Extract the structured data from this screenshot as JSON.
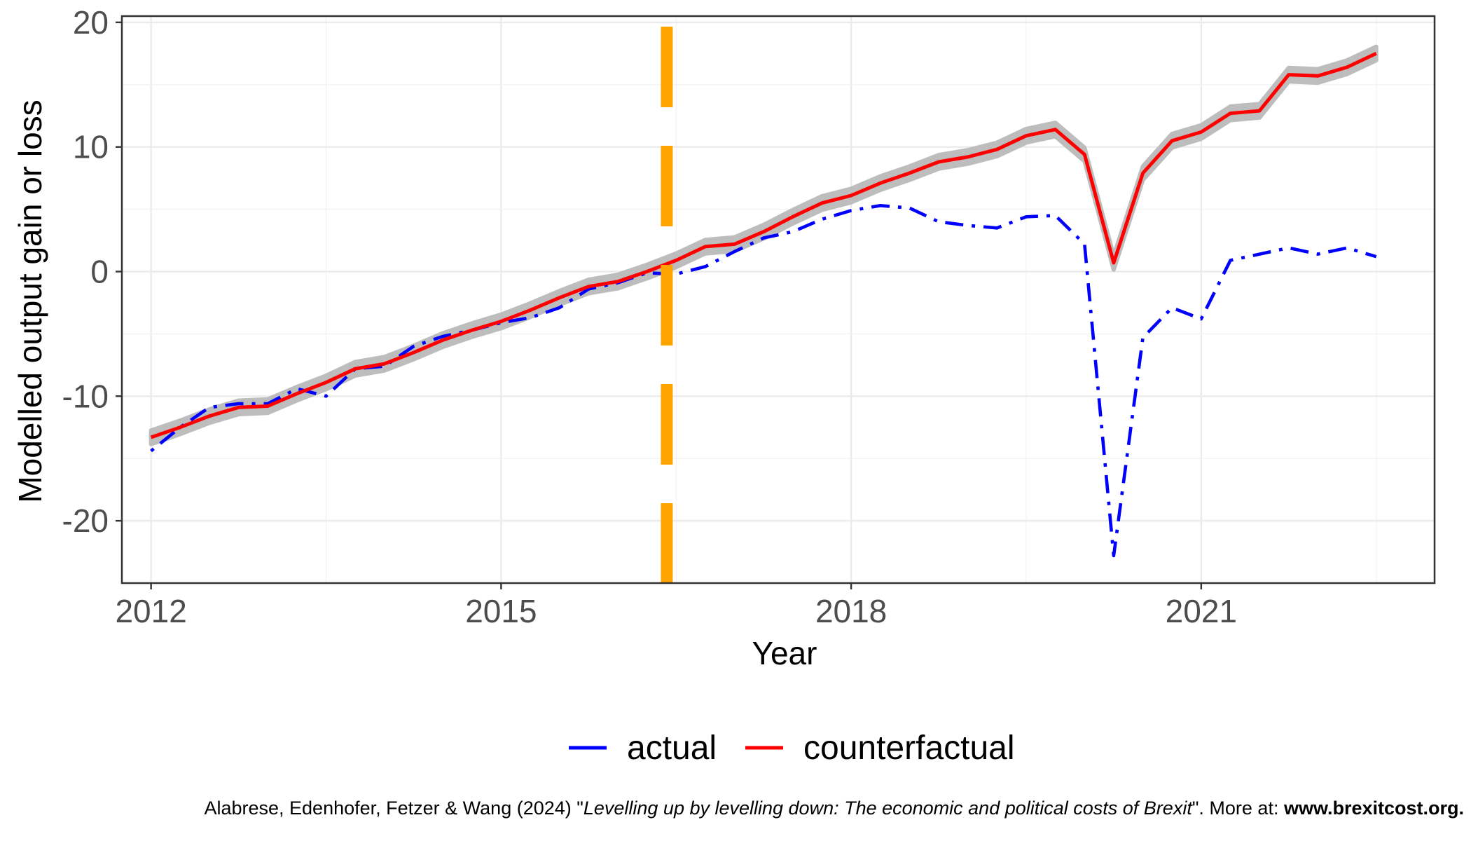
{
  "chart_data": {
    "type": "line",
    "title": "",
    "xlabel": "Year",
    "ylabel": "Modelled output gain or loss",
    "xlim": [
      2011.75,
      2023.0
    ],
    "ylim": [
      -25,
      20.5
    ],
    "x_ticks": [
      2012,
      2015,
      2018,
      2021
    ],
    "x_tick_labels": [
      "2012",
      "2015",
      "2018",
      "2021"
    ],
    "y_ticks": [
      -20,
      -10,
      0,
      10,
      20
    ],
    "y_tick_labels": [
      "-20",
      "-10",
      "0",
      "10",
      "20"
    ],
    "grid": true,
    "legend_position": "bottom",
    "x": [
      2012.0,
      2012.25,
      2012.5,
      2012.75,
      2013.0,
      2013.25,
      2013.5,
      2013.75,
      2014.0,
      2014.25,
      2014.5,
      2014.75,
      2015.0,
      2015.25,
      2015.5,
      2015.75,
      2016.0,
      2016.25,
      2016.5,
      2016.75,
      2017.0,
      2017.25,
      2017.5,
      2017.75,
      2018.0,
      2018.25,
      2018.5,
      2018.75,
      2019.0,
      2019.25,
      2019.5,
      2019.75,
      2020.0,
      2020.25,
      2020.5,
      2020.75,
      2021.0,
      2021.25,
      2021.5,
      2021.75,
      2022.0,
      2022.25,
      2022.5
    ],
    "series": [
      {
        "name": "actual",
        "color": "#0000ff",
        "dash": "dotdash",
        "values": [
          -14.4,
          -12.5,
          -10.9,
          -10.6,
          -10.6,
          -9.4,
          -10.0,
          -7.8,
          -7.6,
          -6.0,
          -5.2,
          -4.7,
          -4.1,
          -3.7,
          -2.9,
          -1.4,
          -0.9,
          -0.1,
          -0.2,
          0.4,
          1.6,
          2.7,
          3.2,
          4.2,
          4.9,
          5.3,
          5.1,
          4.0,
          3.7,
          3.5,
          4.4,
          4.5,
          2.2,
          -22.8,
          -5.3,
          -2.9,
          -3.8,
          0.9,
          1.4,
          1.9,
          1.4,
          1.9,
          1.2
        ]
      },
      {
        "name": "counterfactual",
        "color": "#ff0000",
        "dash": "solid",
        "ci_halfwidth": 0.55,
        "values": [
          -13.3,
          -12.5,
          -11.6,
          -10.9,
          -10.8,
          -9.8,
          -8.9,
          -7.8,
          -7.4,
          -6.5,
          -5.5,
          -4.7,
          -4.0,
          -3.1,
          -2.1,
          -1.2,
          -0.8,
          0.0,
          0.9,
          2.0,
          2.2,
          3.2,
          4.4,
          5.5,
          6.1,
          7.1,
          7.9,
          8.8,
          9.2,
          9.8,
          10.9,
          11.4,
          9.4,
          0.7,
          7.9,
          10.5,
          11.2,
          12.7,
          12.9,
          15.8,
          15.7,
          16.4,
          17.5
        ]
      }
    ],
    "annotations": [
      {
        "type": "vline",
        "x": 2016.42,
        "color": "#ffa500",
        "dash": "long-dash"
      }
    ],
    "caption": {
      "authors": "Alabrese, Edenhofer, Fetzer & Wang (2024) \"",
      "paper_title": "Levelling up by levelling down: The economic and political costs of Brexit",
      "more": "\". More at: ",
      "url": "www.brexitcost.org."
    }
  }
}
